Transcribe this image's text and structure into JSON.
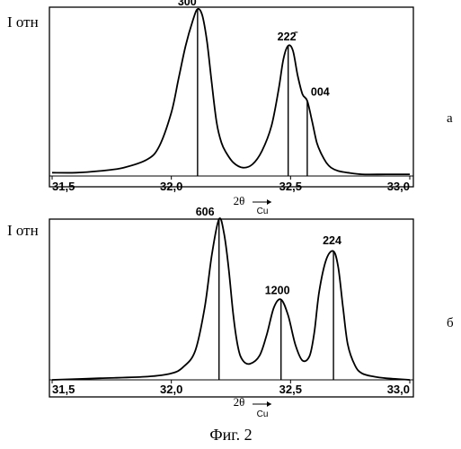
{
  "figure_caption": "Фиг. 2",
  "chart_data": [
    {
      "type": "line",
      "panel_label": "а",
      "ylabel": "I отн",
      "xlabel_main": "2θ",
      "xlabel_sub": "Cu",
      "xlim": [
        31.5,
        33.0
      ],
      "xticks": [
        {
          "value": 31.5,
          "label": "31,5"
        },
        {
          "value": 32.0,
          "label": "32,0"
        },
        {
          "value": 32.5,
          "label": "32,5"
        },
        {
          "value": 33.0,
          "label": "33,0"
        }
      ],
      "grid": false,
      "series": [
        {
          "x": [
            31.5,
            31.6,
            31.7,
            31.8,
            31.9,
            31.95,
            32.0,
            32.03,
            32.06,
            32.09,
            32.11,
            32.13,
            32.15,
            32.17,
            32.19,
            32.21,
            32.23,
            32.26,
            32.3,
            32.34,
            32.38,
            32.42,
            32.45,
            32.47,
            32.49,
            32.51,
            32.53,
            32.55,
            32.57,
            32.59,
            32.61,
            32.63,
            32.65,
            32.67,
            32.7,
            32.74,
            32.8,
            32.9,
            33.0
          ],
          "y": [
            0.02,
            0.02,
            0.03,
            0.05,
            0.1,
            0.18,
            0.38,
            0.58,
            0.78,
            0.93,
            1.0,
            0.96,
            0.8,
            0.55,
            0.32,
            0.2,
            0.14,
            0.08,
            0.05,
            0.07,
            0.15,
            0.3,
            0.52,
            0.7,
            0.78,
            0.75,
            0.6,
            0.49,
            0.45,
            0.33,
            0.2,
            0.13,
            0.08,
            0.05,
            0.03,
            0.02,
            0.01,
            0.01,
            0.01
          ]
        }
      ],
      "peaks": [
        {
          "label": "300",
          "x": 32.11,
          "y": 1.0
        },
        {
          "label": "222̄",
          "x": 32.49,
          "y": 0.78
        },
        {
          "label": "004",
          "x": 32.57,
          "y": 0.45
        }
      ]
    },
    {
      "type": "line",
      "panel_label": "б",
      "ylabel": "I отн",
      "xlabel_main": "2θ",
      "xlabel_sub": "Cu",
      "xlim": [
        31.5,
        33.0
      ],
      "xticks": [
        {
          "value": 31.5,
          "label": "31,5"
        },
        {
          "value": 32.0,
          "label": "32,0"
        },
        {
          "value": 32.5,
          "label": "32,5"
        },
        {
          "value": 33.0,
          "label": "33,0"
        }
      ],
      "grid": false,
      "series": [
        {
          "x": [
            31.5,
            31.7,
            31.9,
            32.0,
            32.05,
            32.1,
            32.14,
            32.17,
            32.2,
            32.22,
            32.24,
            32.26,
            32.28,
            32.3,
            32.33,
            32.37,
            32.4,
            32.43,
            32.46,
            32.49,
            32.52,
            32.55,
            32.58,
            32.6,
            32.62,
            32.65,
            32.68,
            32.7,
            32.72,
            32.74,
            32.77,
            32.8,
            32.85,
            32.9,
            33.0
          ],
          "y": [
            0.0,
            0.01,
            0.02,
            0.04,
            0.08,
            0.18,
            0.45,
            0.78,
            1.0,
            0.92,
            0.7,
            0.4,
            0.2,
            0.12,
            0.1,
            0.15,
            0.28,
            0.45,
            0.5,
            0.4,
            0.22,
            0.12,
            0.15,
            0.3,
            0.55,
            0.75,
            0.8,
            0.7,
            0.45,
            0.22,
            0.09,
            0.04,
            0.02,
            0.01,
            0.0
          ]
        }
      ],
      "peaks": [
        {
          "label": "606",
          "x": 32.2,
          "y": 1.0
        },
        {
          "label": "1200",
          "x": 32.46,
          "y": 0.5
        },
        {
          "label": "224",
          "x": 32.68,
          "y": 0.8
        }
      ]
    }
  ]
}
